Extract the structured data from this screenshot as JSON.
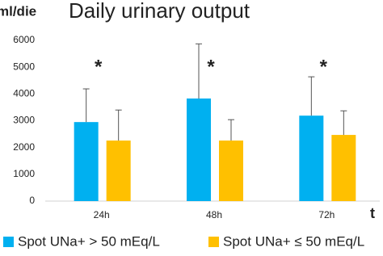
{
  "chart_data": {
    "type": "bar",
    "title": "Daily urinary output",
    "y_label": "ml/die",
    "x_label": "t",
    "categories": [
      "24h",
      "48h",
      "72h"
    ],
    "series": [
      {
        "name": "Spot UNa+ > 50 mEq/L",
        "color": "#00b0f0",
        "values": [
          2950,
          3830,
          3190
        ],
        "errors": [
          1240,
          2040,
          1450
        ]
      },
      {
        "name": "Spot UNa+ ≤ 50 mEq/L",
        "color": "#ffc000",
        "values": [
          2260,
          2260,
          2470
        ],
        "errors": [
          1140,
          780,
          900
        ]
      }
    ],
    "annotations": [
      "*",
      "*",
      "*"
    ],
    "ylim": [
      0,
      6000
    ],
    "yticks": [
      0,
      1000,
      2000,
      3000,
      4000,
      5000,
      6000
    ],
    "grid": false
  }
}
